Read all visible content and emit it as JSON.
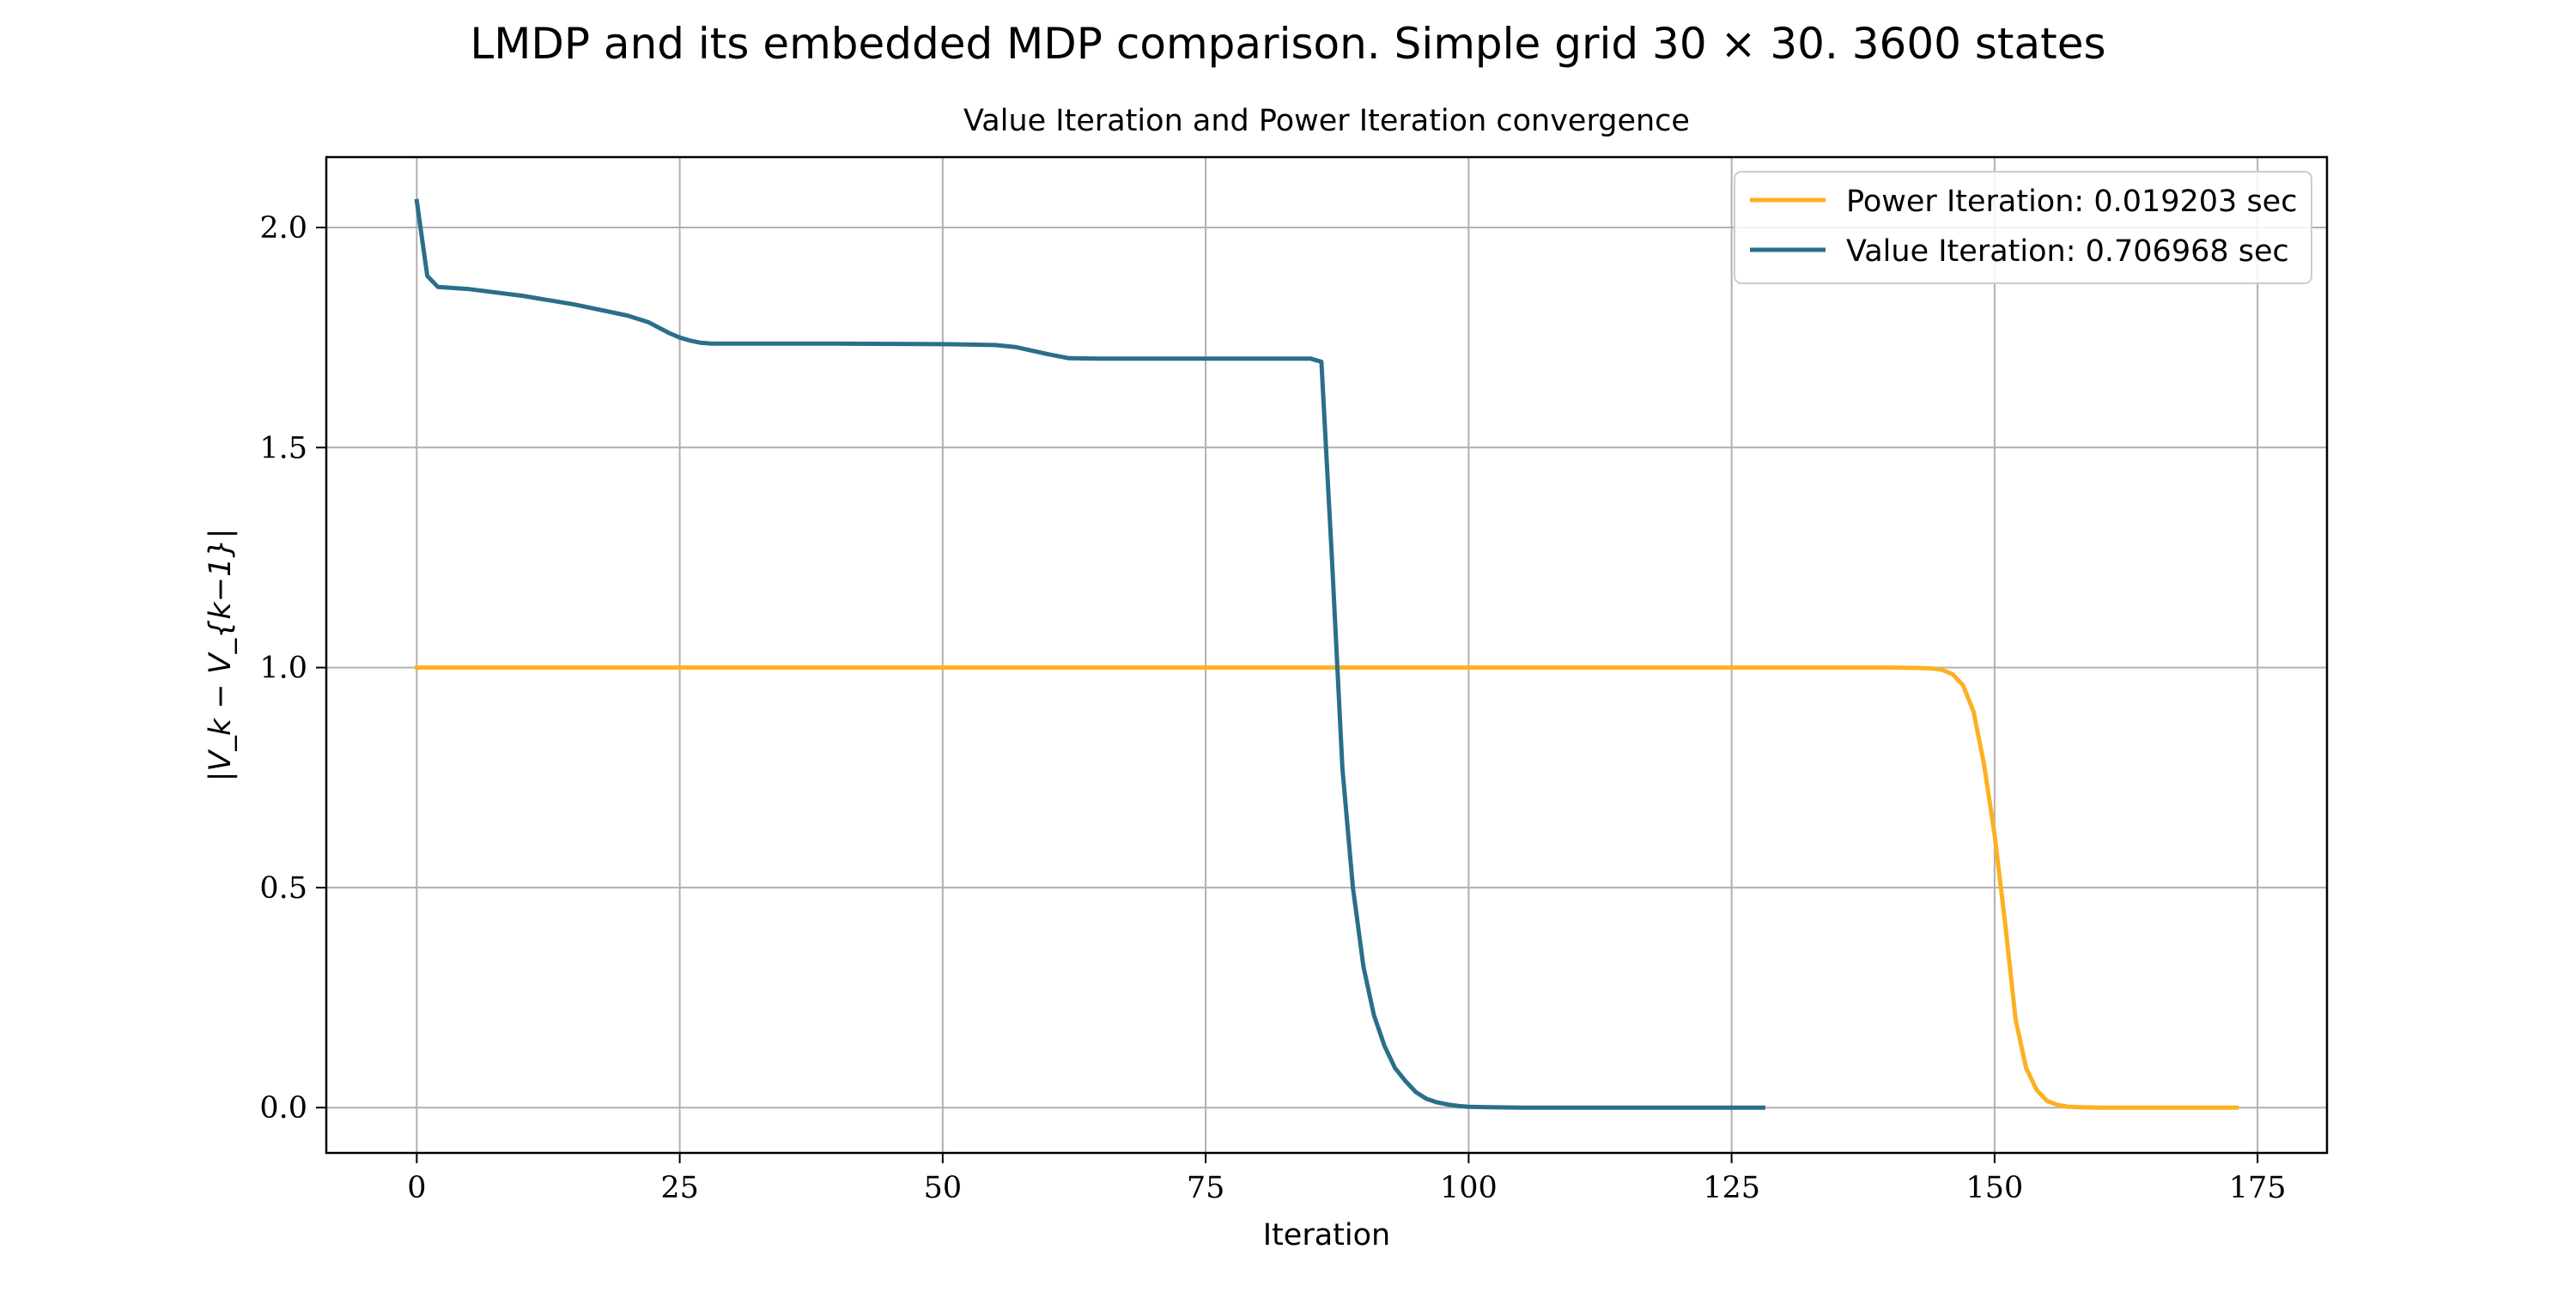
{
  "figure": {
    "suptitle": "LMDP and its embedded MDP comparison. Simple grid 30 × 30. 3600 states"
  },
  "chart_data": {
    "type": "line",
    "title": "Value Iteration and Power Iteration convergence",
    "xlabel": "Iteration",
    "ylabel": "|V_k − V_{k−1}|",
    "xlim": [
      -8.6,
      181.6
    ],
    "ylim": [
      -0.103,
      2.16
    ],
    "xticks": [
      0,
      25,
      50,
      75,
      100,
      125,
      150,
      175
    ],
    "xtick_labels": [
      "0",
      "25",
      "50",
      "75",
      "100",
      "125",
      "150",
      "175"
    ],
    "yticks": [
      0.0,
      0.5,
      1.0,
      1.5,
      2.0
    ],
    "ytick_labels": [
      "0.0",
      "0.5",
      "1.0",
      "1.5",
      "2.0"
    ],
    "grid": true,
    "legend_position": "top-right",
    "series": [
      {
        "name": "Power Iteration: 0.019203 sec",
        "color": "#fbb121",
        "x": [
          0,
          20,
          40,
          60,
          80,
          100,
          120,
          140,
          143,
          144,
          145,
          146,
          147,
          148,
          149,
          150,
          151,
          152,
          153,
          154,
          155,
          156,
          157,
          158,
          160,
          165,
          170,
          173
        ],
        "y": [
          1.0,
          1.0,
          1.0,
          1.0,
          1.0,
          1.0,
          1.0,
          1.0,
          0.999,
          0.998,
          0.995,
          0.985,
          0.96,
          0.9,
          0.78,
          0.62,
          0.42,
          0.2,
          0.09,
          0.04,
          0.015,
          0.006,
          0.002,
          0.001,
          0.0,
          0.0,
          0.0,
          0.0
        ]
      },
      {
        "name": "Value Iteration: 0.706968 sec",
        "color": "#2a6f8a",
        "x": [
          0,
          1,
          2,
          5,
          10,
          15,
          20,
          22,
          24,
          25,
          26,
          27,
          28,
          30,
          40,
          50,
          55,
          57,
          60,
          62,
          65,
          70,
          75,
          80,
          85,
          86,
          87,
          88,
          89,
          90,
          91,
          92,
          93,
          94,
          95,
          96,
          97,
          98,
          99,
          100,
          102,
          105,
          110,
          120,
          128
        ],
        "y": [
          2.06,
          1.89,
          1.865,
          1.86,
          1.845,
          1.825,
          1.8,
          1.785,
          1.76,
          1.75,
          1.743,
          1.738,
          1.736,
          1.736,
          1.736,
          1.735,
          1.733,
          1.728,
          1.712,
          1.703,
          1.702,
          1.702,
          1.702,
          1.702,
          1.702,
          1.695,
          1.25,
          0.77,
          0.5,
          0.32,
          0.21,
          0.14,
          0.09,
          0.06,
          0.035,
          0.02,
          0.012,
          0.007,
          0.004,
          0.002,
          0.001,
          0.0,
          0.0,
          0.0,
          0.0
        ]
      }
    ]
  }
}
